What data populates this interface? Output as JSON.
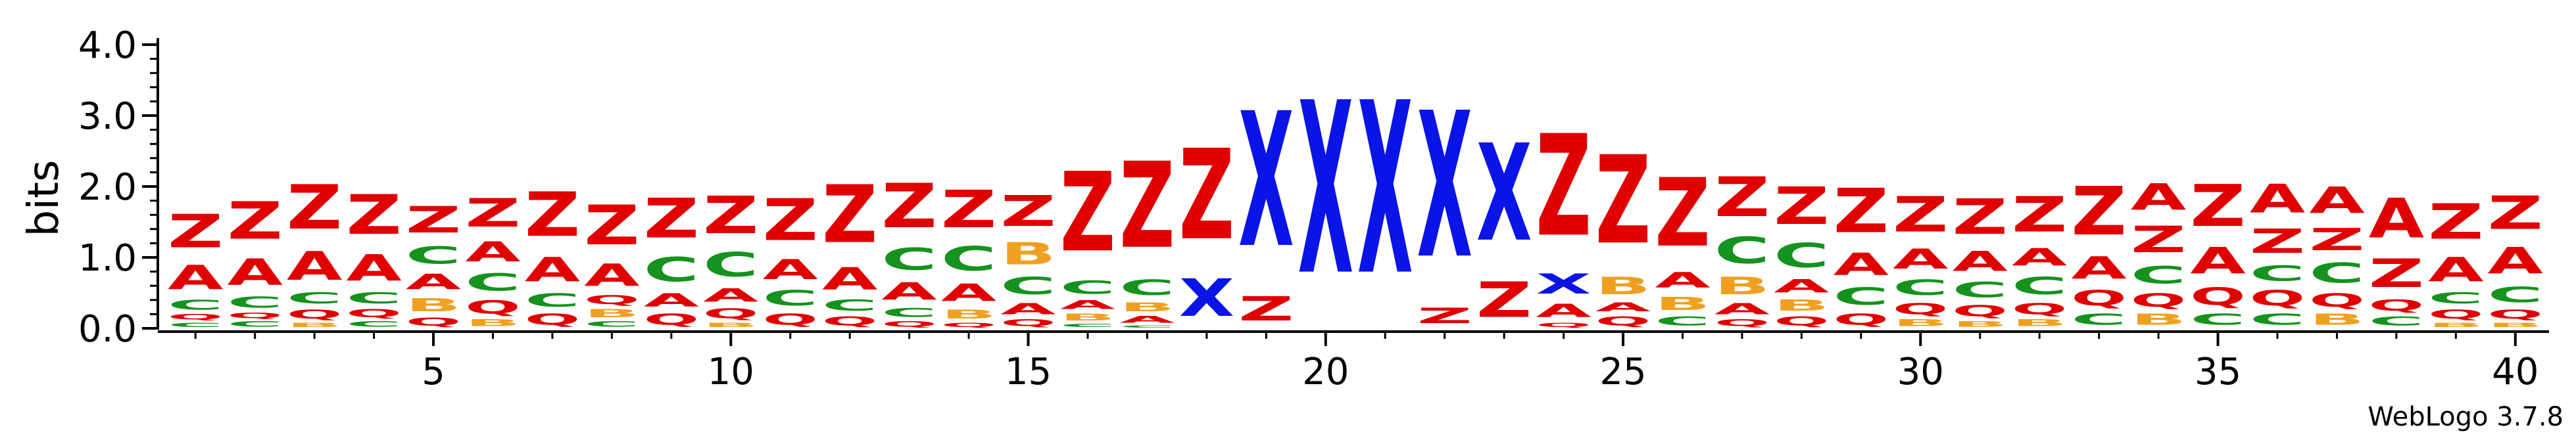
{
  "credit": "WebLogo 3.7.8",
  "colors": {
    "A": "#e00000",
    "Z": "#e00000",
    "C": "#16921e",
    "Q": "#e00000",
    "B": "#f0a020",
    "X": "#0a14e6"
  },
  "chart_data": {
    "type": "sequence-logo",
    "ylabel": "bits",
    "ylim": [
      0,
      4.0
    ],
    "yticks": [
      "0.0",
      "1.0",
      "2.0",
      "3.0",
      "4.0"
    ],
    "xticks": [
      5,
      10,
      15,
      20,
      25,
      30,
      35,
      40
    ],
    "positions": [
      {
        "pos": 1,
        "letters": [
          [
            "C",
            0.1
          ],
          [
            "Q",
            0.12
          ],
          [
            "C",
            0.22
          ],
          [
            "A",
            0.55
          ],
          [
            "Z",
            0.75
          ]
        ]
      },
      {
        "pos": 2,
        "letters": [
          [
            "C",
            0.12
          ],
          [
            "Q",
            0.12
          ],
          [
            "C",
            0.25
          ],
          [
            "A",
            0.6
          ],
          [
            "Z",
            0.85
          ]
        ]
      },
      {
        "pos": 3,
        "letters": [
          [
            "B",
            0.1
          ],
          [
            "Q",
            0.2
          ],
          [
            "C",
            0.25
          ],
          [
            "A",
            0.65
          ],
          [
            "Z",
            1.0
          ]
        ]
      },
      {
        "pos": 4,
        "letters": [
          [
            "C",
            0.12
          ],
          [
            "Q",
            0.18
          ],
          [
            "C",
            0.25
          ],
          [
            "A",
            0.6
          ],
          [
            "Z",
            0.9
          ]
        ]
      },
      {
        "pos": 5,
        "letters": [
          [
            "Q",
            0.18
          ],
          [
            "B",
            0.3
          ],
          [
            "A",
            0.35
          ],
          [
            "C",
            0.4
          ],
          [
            "Z",
            0.6
          ]
        ]
      },
      {
        "pos": 6,
        "letters": [
          [
            "B",
            0.15
          ],
          [
            "Q",
            0.3
          ],
          [
            "C",
            0.4
          ],
          [
            "A",
            0.45
          ],
          [
            "Z",
            0.65
          ]
        ]
      },
      {
        "pos": 7,
        "letters": [
          [
            "Q",
            0.25
          ],
          [
            "C",
            0.3
          ],
          [
            "A",
            0.55
          ],
          [
            "Z",
            1.0
          ]
        ]
      },
      {
        "pos": 8,
        "letters": [
          [
            "C",
            0.12
          ],
          [
            "B",
            0.18
          ],
          [
            "Q",
            0.2
          ],
          [
            "A",
            0.5
          ],
          [
            "Z",
            0.9
          ]
        ]
      },
      {
        "pos": 9,
        "letters": [
          [
            "Q",
            0.25
          ],
          [
            "A",
            0.3
          ],
          [
            "C",
            0.55
          ],
          [
            "Z",
            0.9
          ]
        ]
      },
      {
        "pos": 10,
        "letters": [
          [
            "B",
            0.1
          ],
          [
            "Q",
            0.22
          ],
          [
            "A",
            0.3
          ],
          [
            "C",
            0.55
          ],
          [
            "Z",
            0.85
          ]
        ]
      },
      {
        "pos": 11,
        "letters": [
          [
            "Q",
            0.25
          ],
          [
            "C",
            0.35
          ],
          [
            "A",
            0.45
          ],
          [
            "Z",
            0.95
          ]
        ]
      },
      {
        "pos": 12,
        "letters": [
          [
            "Q",
            0.2
          ],
          [
            "C",
            0.25
          ],
          [
            "A",
            0.5
          ],
          [
            "Z",
            1.3
          ]
        ]
      },
      {
        "pos": 13,
        "letters": [
          [
            "Q",
            0.12
          ],
          [
            "C",
            0.2
          ],
          [
            "A",
            0.4
          ],
          [
            "C",
            0.5
          ],
          [
            "Z",
            1.0
          ]
        ]
      },
      {
        "pos": 14,
        "letters": [
          [
            "Q",
            0.1
          ],
          [
            "B",
            0.2
          ],
          [
            "A",
            0.4
          ],
          [
            "C",
            0.55
          ],
          [
            "Z",
            0.85
          ]
        ]
      },
      {
        "pos": 15,
        "letters": [
          [
            "Q",
            0.15
          ],
          [
            "A",
            0.25
          ],
          [
            "C",
            0.4
          ],
          [
            "B",
            0.5
          ],
          [
            "Z",
            0.7
          ]
        ]
      },
      {
        "pos": 16,
        "letters": [
          [
            "C",
            0.08
          ],
          [
            "B",
            0.15
          ],
          [
            "A",
            0.2
          ],
          [
            "C",
            0.3
          ],
          [
            "Z",
            1.8
          ]
        ]
      },
      {
        "pos": 17,
        "letters": [
          [
            "C",
            0.05
          ],
          [
            "A",
            0.15
          ],
          [
            "B",
            0.2
          ],
          [
            "C",
            0.35
          ],
          [
            "Z",
            1.95
          ]
        ]
      },
      {
        "pos": 18,
        "letters": [
          [
            "X",
            0.85
          ],
          [
            "Z",
            2.05
          ]
        ]
      },
      {
        "pos": 19,
        "letters": [
          [
            "Z",
            0.55
          ],
          [
            "X",
            3.05
          ]
        ]
      },
      {
        "pos": 20,
        "letters": [
          [
            "X",
            3.9
          ]
        ]
      },
      {
        "pos": 21,
        "letters": [
          [
            "X",
            3.9
          ]
        ]
      },
      {
        "pos": 22,
        "letters": [
          [
            "Z",
            0.35
          ],
          [
            "X",
            3.3
          ]
        ]
      },
      {
        "pos": 23,
        "letters": [
          [
            "Z",
            0.8
          ],
          [
            "X",
            2.2
          ]
        ]
      },
      {
        "pos": 24,
        "letters": [
          [
            "Q",
            0.1
          ],
          [
            "A",
            0.3
          ],
          [
            "X",
            0.45
          ],
          [
            "Z",
            2.3
          ]
        ]
      },
      {
        "pos": 25,
        "letters": [
          [
            "Q",
            0.2
          ],
          [
            "A",
            0.2
          ],
          [
            "B",
            0.4
          ],
          [
            "Z",
            2.0
          ]
        ]
      },
      {
        "pos": 26,
        "letters": [
          [
            "C",
            0.2
          ],
          [
            "B",
            0.3
          ],
          [
            "A",
            0.35
          ],
          [
            "Z",
            1.55
          ]
        ]
      },
      {
        "pos": 27,
        "letters": [
          [
            "Q",
            0.15
          ],
          [
            "A",
            0.25
          ],
          [
            "B",
            0.4
          ],
          [
            "C",
            0.6
          ],
          [
            "Z",
            0.9
          ]
        ]
      },
      {
        "pos": 28,
        "letters": [
          [
            "Q",
            0.2
          ],
          [
            "B",
            0.25
          ],
          [
            "A",
            0.3
          ],
          [
            "C",
            0.55
          ],
          [
            "Z",
            0.85
          ]
        ]
      },
      {
        "pos": 29,
        "letters": [
          [
            "Q",
            0.25
          ],
          [
            "C",
            0.4
          ],
          [
            "A",
            0.5
          ],
          [
            "Z",
            1.0
          ]
        ]
      },
      {
        "pos": 30,
        "letters": [
          [
            "B",
            0.15
          ],
          [
            "Q",
            0.25
          ],
          [
            "C",
            0.35
          ],
          [
            "A",
            0.45
          ],
          [
            "Z",
            0.8
          ]
        ]
      },
      {
        "pos": 31,
        "letters": [
          [
            "B",
            0.12
          ],
          [
            "Q",
            0.25
          ],
          [
            "C",
            0.35
          ],
          [
            "A",
            0.45
          ],
          [
            "Z",
            0.8
          ]
        ]
      },
      {
        "pos": 32,
        "letters": [
          [
            "B",
            0.15
          ],
          [
            "Q",
            0.25
          ],
          [
            "C",
            0.4
          ],
          [
            "A",
            0.4
          ],
          [
            "Z",
            0.8
          ]
        ]
      },
      {
        "pos": 33,
        "letters": [
          [
            "C",
            0.25
          ],
          [
            "Q",
            0.35
          ],
          [
            "A",
            0.5
          ],
          [
            "Z",
            1.1
          ]
        ]
      },
      {
        "pos": 34,
        "letters": [
          [
            "B",
            0.25
          ],
          [
            "Q",
            0.3
          ],
          [
            "C",
            0.4
          ],
          [
            "Z",
            0.6
          ],
          [
            "A",
            0.6
          ]
        ]
      },
      {
        "pos": 35,
        "letters": [
          [
            "C",
            0.25
          ],
          [
            "Q",
            0.4
          ],
          [
            "A",
            0.6
          ],
          [
            "Z",
            0.95
          ]
        ]
      },
      {
        "pos": 36,
        "letters": [
          [
            "C",
            0.25
          ],
          [
            "Q",
            0.35
          ],
          [
            "C",
            0.35
          ],
          [
            "Z",
            0.55
          ],
          [
            "A",
            0.65
          ]
        ]
      },
      {
        "pos": 37,
        "letters": [
          [
            "B",
            0.25
          ],
          [
            "Q",
            0.3
          ],
          [
            "C",
            0.45
          ],
          [
            "Z",
            0.5
          ],
          [
            "A",
            0.6
          ]
        ]
      },
      {
        "pos": 38,
        "letters": [
          [
            "C",
            0.2
          ],
          [
            "Q",
            0.25
          ],
          [
            "Z",
            0.65
          ],
          [
            "A",
            0.9
          ]
        ]
      },
      {
        "pos": 39,
        "letters": [
          [
            "B",
            0.1
          ],
          [
            "Q",
            0.2
          ],
          [
            "C",
            0.25
          ],
          [
            "A",
            0.55
          ],
          [
            "Z",
            0.8
          ]
        ]
      },
      {
        "pos": 40,
        "letters": [
          [
            "B",
            0.1
          ],
          [
            "Q",
            0.2
          ],
          [
            "C",
            0.35
          ],
          [
            "A",
            0.6
          ],
          [
            "Z",
            0.75
          ]
        ]
      }
    ]
  }
}
